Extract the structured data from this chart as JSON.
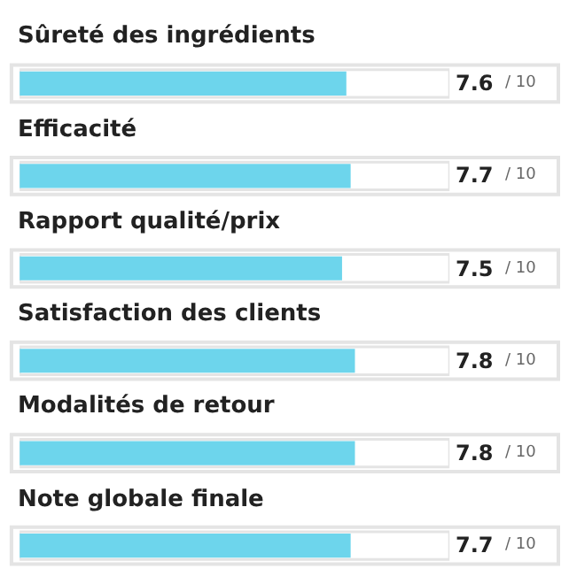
{
  "chart_data": {
    "type": "bar",
    "orientation": "horizontal",
    "categories": [
      "Sûreté des ingrédients",
      "Efficacité",
      "Rapport qualité/prix",
      "Satisfaction des clients",
      "Modalités de retour",
      "Note globale finale"
    ],
    "values": [
      7.6,
      7.7,
      7.5,
      7.8,
      7.8,
      7.7
    ],
    "data_labels": true,
    "annotations": [
      "/ 10",
      "/ 10",
      "/ 10",
      "/ 10",
      "/ 10",
      "/ 10"
    ],
    "color": "#6dd5ec",
    "xlim": [
      0,
      10
    ],
    "tick_labels": false,
    "grid": false,
    "legend": false
  }
}
